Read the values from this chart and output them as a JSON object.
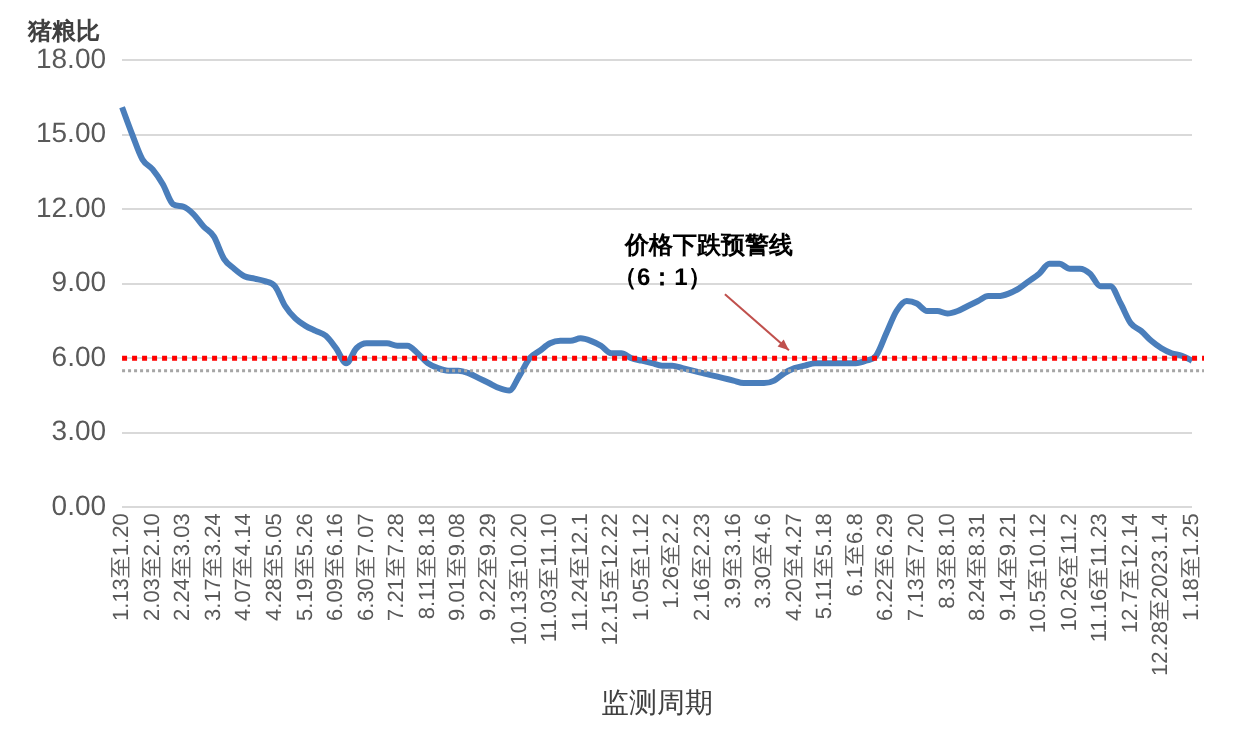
{
  "chart_data": {
    "type": "line",
    "ylabel": "猪粮比",
    "xlabel": "监测周期",
    "categories": [
      "1.13至1.20",
      null,
      null,
      "2.03至2.10",
      null,
      null,
      "2.24至3.03",
      null,
      null,
      "3.17至3.24",
      null,
      null,
      "4.07至4.14",
      null,
      null,
      "4.28至5.05",
      null,
      null,
      "5.19至5.26",
      null,
      null,
      "6.09至6.16",
      null,
      null,
      "6.30至7.07",
      null,
      null,
      "7.21至7.28",
      null,
      null,
      "8.11至8.18",
      null,
      null,
      "9.01至9.08",
      null,
      null,
      "9.22至9.29",
      null,
      null,
      "10.13至10.20",
      null,
      null,
      "11.03至11.10",
      null,
      null,
      "11.24至12.1",
      null,
      null,
      "12.15至12.22",
      null,
      null,
      "1.05至1.12",
      null,
      null,
      "1.26至2.2",
      null,
      null,
      "2.16至2.23",
      null,
      null,
      "3.9至3.16",
      null,
      null,
      "3.30至4.6",
      null,
      null,
      "4.20至4.27",
      null,
      null,
      "5.11至5.18",
      null,
      null,
      "6.1至6.8",
      null,
      null,
      "6.22至6.29",
      null,
      null,
      "7.13至7.20",
      null,
      null,
      "8.3至8.10",
      null,
      null,
      "8.24至8.31",
      null,
      null,
      "9.14至9.21",
      null,
      null,
      "10.5至10.12",
      null,
      null,
      "10.26至11.2",
      null,
      null,
      "11.16至11.23",
      null,
      null,
      "12.7至12.14",
      null,
      null,
      "12.28至2023.1.4",
      null,
      null,
      "1.18至1.25"
    ],
    "series": [
      {
        "color": "#4a7ebb",
        "values": [
          16.1,
          15.0,
          14.0,
          13.6,
          13.0,
          12.2,
          12.1,
          11.8,
          11.3,
          10.9,
          10.0,
          9.6,
          9.3,
          9.2,
          9.1,
          8.9,
          8.1,
          7.6,
          7.3,
          7.1,
          6.9,
          6.4,
          5.8,
          6.4,
          6.6,
          6.6,
          6.6,
          6.5,
          6.5,
          6.2,
          5.8,
          5.6,
          5.5,
          5.5,
          5.4,
          5.2,
          5.0,
          4.8,
          4.7,
          5.3,
          6.0,
          6.3,
          6.6,
          6.7,
          6.7,
          6.8,
          6.7,
          6.5,
          6.2,
          6.2,
          6.0,
          5.9,
          5.8,
          5.7,
          5.7,
          5.6,
          5.5,
          5.4,
          5.3,
          5.2,
          5.1,
          5.0,
          5.0,
          5.0,
          5.1,
          5.4,
          5.6,
          5.7,
          5.8,
          5.8,
          5.8,
          5.8,
          5.8,
          5.9,
          6.1,
          7.0,
          7.9,
          8.3,
          8.2,
          7.9,
          7.9,
          7.8,
          7.9,
          8.1,
          8.3,
          8.5,
          8.5,
          8.6,
          8.8,
          9.1,
          9.4,
          9.8,
          9.8,
          9.6,
          9.6,
          9.4,
          8.9,
          8.9,
          8.2,
          7.4,
          7.1,
          6.7,
          6.4,
          6.2,
          6.1,
          5.9
        ]
      }
    ],
    "ylim": [
      0,
      18
    ],
    "yticks": [
      {
        "value": 0,
        "label": "0.00"
      },
      {
        "value": 3,
        "label": "3.00"
      },
      {
        "value": 6,
        "label": "6.00"
      },
      {
        "value": 9,
        "label": "9.00"
      },
      {
        "value": 12,
        "label": "12.00"
      },
      {
        "value": 15,
        "label": "15.00"
      },
      {
        "value": 18,
        "label": "18.00"
      }
    ],
    "ref_lines": [
      {
        "axis": "y",
        "value": 6,
        "label": "价格下跌预警线（6：1）",
        "color": "#ff0000",
        "line_style": "dotted"
      },
      {
        "axis": "y",
        "value": 5.5,
        "color": "#a6a6a6",
        "line_style": "dotted"
      }
    ],
    "grid": "y",
    "legend": false,
    "marker": "none",
    "line_style": "solid"
  }
}
